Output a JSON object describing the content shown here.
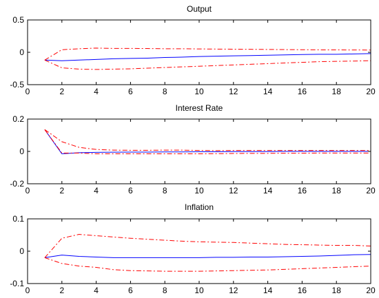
{
  "chart_data": [
    {
      "type": "line",
      "title": "Output",
      "xlabel": "",
      "ylabel": "",
      "xlim": [
        0,
        20
      ],
      "ylim": [
        -0.5,
        0.5
      ],
      "x_ticks": [
        0,
        2,
        4,
        6,
        8,
        10,
        12,
        14,
        16,
        18,
        20
      ],
      "y_ticks": [
        -0.5,
        0,
        0.5
      ],
      "x_tick_labels": [
        "0",
        "2",
        "4",
        "6",
        "8",
        "10",
        "12",
        "14",
        "16",
        "18",
        "20"
      ],
      "y_tick_labels": [
        "-0.5",
        "0",
        "0.5"
      ],
      "grid": false,
      "legend": "none",
      "x": [
        1,
        2,
        3,
        4,
        5,
        6,
        7,
        8,
        9,
        10,
        11,
        12,
        13,
        14,
        15,
        16,
        17,
        18,
        19,
        20
      ],
      "series": [
        {
          "style": "solid",
          "color": "#0000ff",
          "values": [
            -0.12,
            -0.13,
            -0.12,
            -0.11,
            -0.1,
            -0.095,
            -0.09,
            -0.08,
            -0.075,
            -0.065,
            -0.06,
            -0.055,
            -0.05,
            -0.045,
            -0.04,
            -0.035,
            -0.03,
            -0.03,
            -0.025,
            -0.02
          ]
        },
        {
          "style": "dashdot",
          "color": "#ff0000",
          "values": [
            -0.12,
            0.04,
            0.055,
            0.065,
            0.06,
            0.06,
            0.058,
            0.055,
            0.055,
            0.052,
            0.05,
            0.048,
            0.046,
            0.044,
            0.042,
            0.04,
            0.038,
            0.037,
            0.036,
            0.035
          ]
        },
        {
          "style": "dashdot",
          "color": "#ff0000",
          "values": [
            -0.12,
            -0.24,
            -0.26,
            -0.265,
            -0.26,
            -0.255,
            -0.245,
            -0.235,
            -0.225,
            -0.215,
            -0.205,
            -0.195,
            -0.185,
            -0.175,
            -0.165,
            -0.155,
            -0.145,
            -0.14,
            -0.135,
            -0.13
          ]
        }
      ]
    },
    {
      "type": "line",
      "title": "Interest Rate",
      "xlabel": "",
      "ylabel": "",
      "xlim": [
        0,
        20
      ],
      "ylim": [
        -0.2,
        0.2
      ],
      "x_ticks": [
        0,
        2,
        4,
        6,
        8,
        10,
        12,
        14,
        16,
        18,
        20
      ],
      "y_ticks": [
        -0.2,
        0,
        0.2
      ],
      "x_tick_labels": [
        "0",
        "2",
        "4",
        "6",
        "8",
        "10",
        "12",
        "14",
        "16",
        "18",
        "20"
      ],
      "y_tick_labels": [
        "-0.2",
        "0",
        "0.2"
      ],
      "grid": false,
      "legend": "none",
      "x": [
        1,
        2,
        3,
        4,
        5,
        6,
        7,
        8,
        9,
        10,
        11,
        12,
        13,
        14,
        15,
        16,
        17,
        18,
        19,
        20
      ],
      "series": [
        {
          "style": "solid",
          "color": "#0000ff",
          "values": [
            0.135,
            -0.015,
            -0.008,
            -0.006,
            -0.005,
            -0.004,
            -0.004,
            -0.003,
            -0.003,
            -0.002,
            -0.002,
            -0.001,
            -0.001,
            -0.001,
            0.0,
            0.0,
            0.0,
            0.0,
            0.0,
            0.0
          ]
        },
        {
          "style": "dashdot",
          "color": "#ff0000",
          "values": [
            0.135,
            0.06,
            0.025,
            0.012,
            0.008,
            0.007,
            0.007,
            0.008,
            0.008,
            0.006,
            0.005,
            0.006,
            0.006,
            0.006,
            0.006,
            0.006,
            0.006,
            0.006,
            0.006,
            0.006
          ]
        },
        {
          "style": "dashdot",
          "color": "#ff0000",
          "values": [
            0.135,
            -0.01,
            -0.01,
            -0.015,
            -0.015,
            -0.015,
            -0.015,
            -0.015,
            -0.015,
            -0.015,
            -0.014,
            -0.013,
            -0.012,
            -0.012,
            -0.011,
            -0.011,
            -0.01,
            -0.01,
            -0.01,
            -0.01
          ]
        }
      ]
    },
    {
      "type": "line",
      "title": "Inflation",
      "xlabel": "",
      "ylabel": "",
      "xlim": [
        0,
        20
      ],
      "ylim": [
        -0.1,
        0.1
      ],
      "x_ticks": [
        0,
        2,
        4,
        6,
        8,
        10,
        12,
        14,
        16,
        18,
        20
      ],
      "y_ticks": [
        -0.1,
        0,
        0.1
      ],
      "x_tick_labels": [
        "0",
        "2",
        "4",
        "6",
        "8",
        "10",
        "12",
        "14",
        "16",
        "18",
        "20"
      ],
      "y_tick_labels": [
        "-0.1",
        "0",
        "0.1"
      ],
      "grid": false,
      "legend": "none",
      "x": [
        1,
        2,
        3,
        4,
        5,
        6,
        7,
        8,
        9,
        10,
        11,
        12,
        13,
        14,
        15,
        16,
        17,
        18,
        19,
        20
      ],
      "series": [
        {
          "style": "solid",
          "color": "#0000ff",
          "values": [
            -0.02,
            -0.012,
            -0.016,
            -0.018,
            -0.02,
            -0.02,
            -0.02,
            -0.02,
            -0.02,
            -0.02,
            -0.019,
            -0.019,
            -0.018,
            -0.018,
            -0.017,
            -0.016,
            -0.015,
            -0.013,
            -0.011,
            -0.01
          ]
        },
        {
          "style": "dashdot",
          "color": "#ff0000",
          "values": [
            -0.02,
            0.04,
            0.052,
            0.048,
            0.044,
            0.04,
            0.037,
            0.034,
            0.031,
            0.029,
            0.028,
            0.027,
            0.025,
            0.023,
            0.021,
            0.02,
            0.019,
            0.018,
            0.018,
            0.016
          ]
        },
        {
          "style": "dashdot",
          "color": "#ff0000",
          "values": [
            -0.02,
            -0.038,
            -0.046,
            -0.05,
            -0.057,
            -0.06,
            -0.061,
            -0.062,
            -0.062,
            -0.062,
            -0.061,
            -0.06,
            -0.059,
            -0.058,
            -0.056,
            -0.054,
            -0.052,
            -0.05,
            -0.048,
            -0.046
          ]
        }
      ]
    }
  ]
}
